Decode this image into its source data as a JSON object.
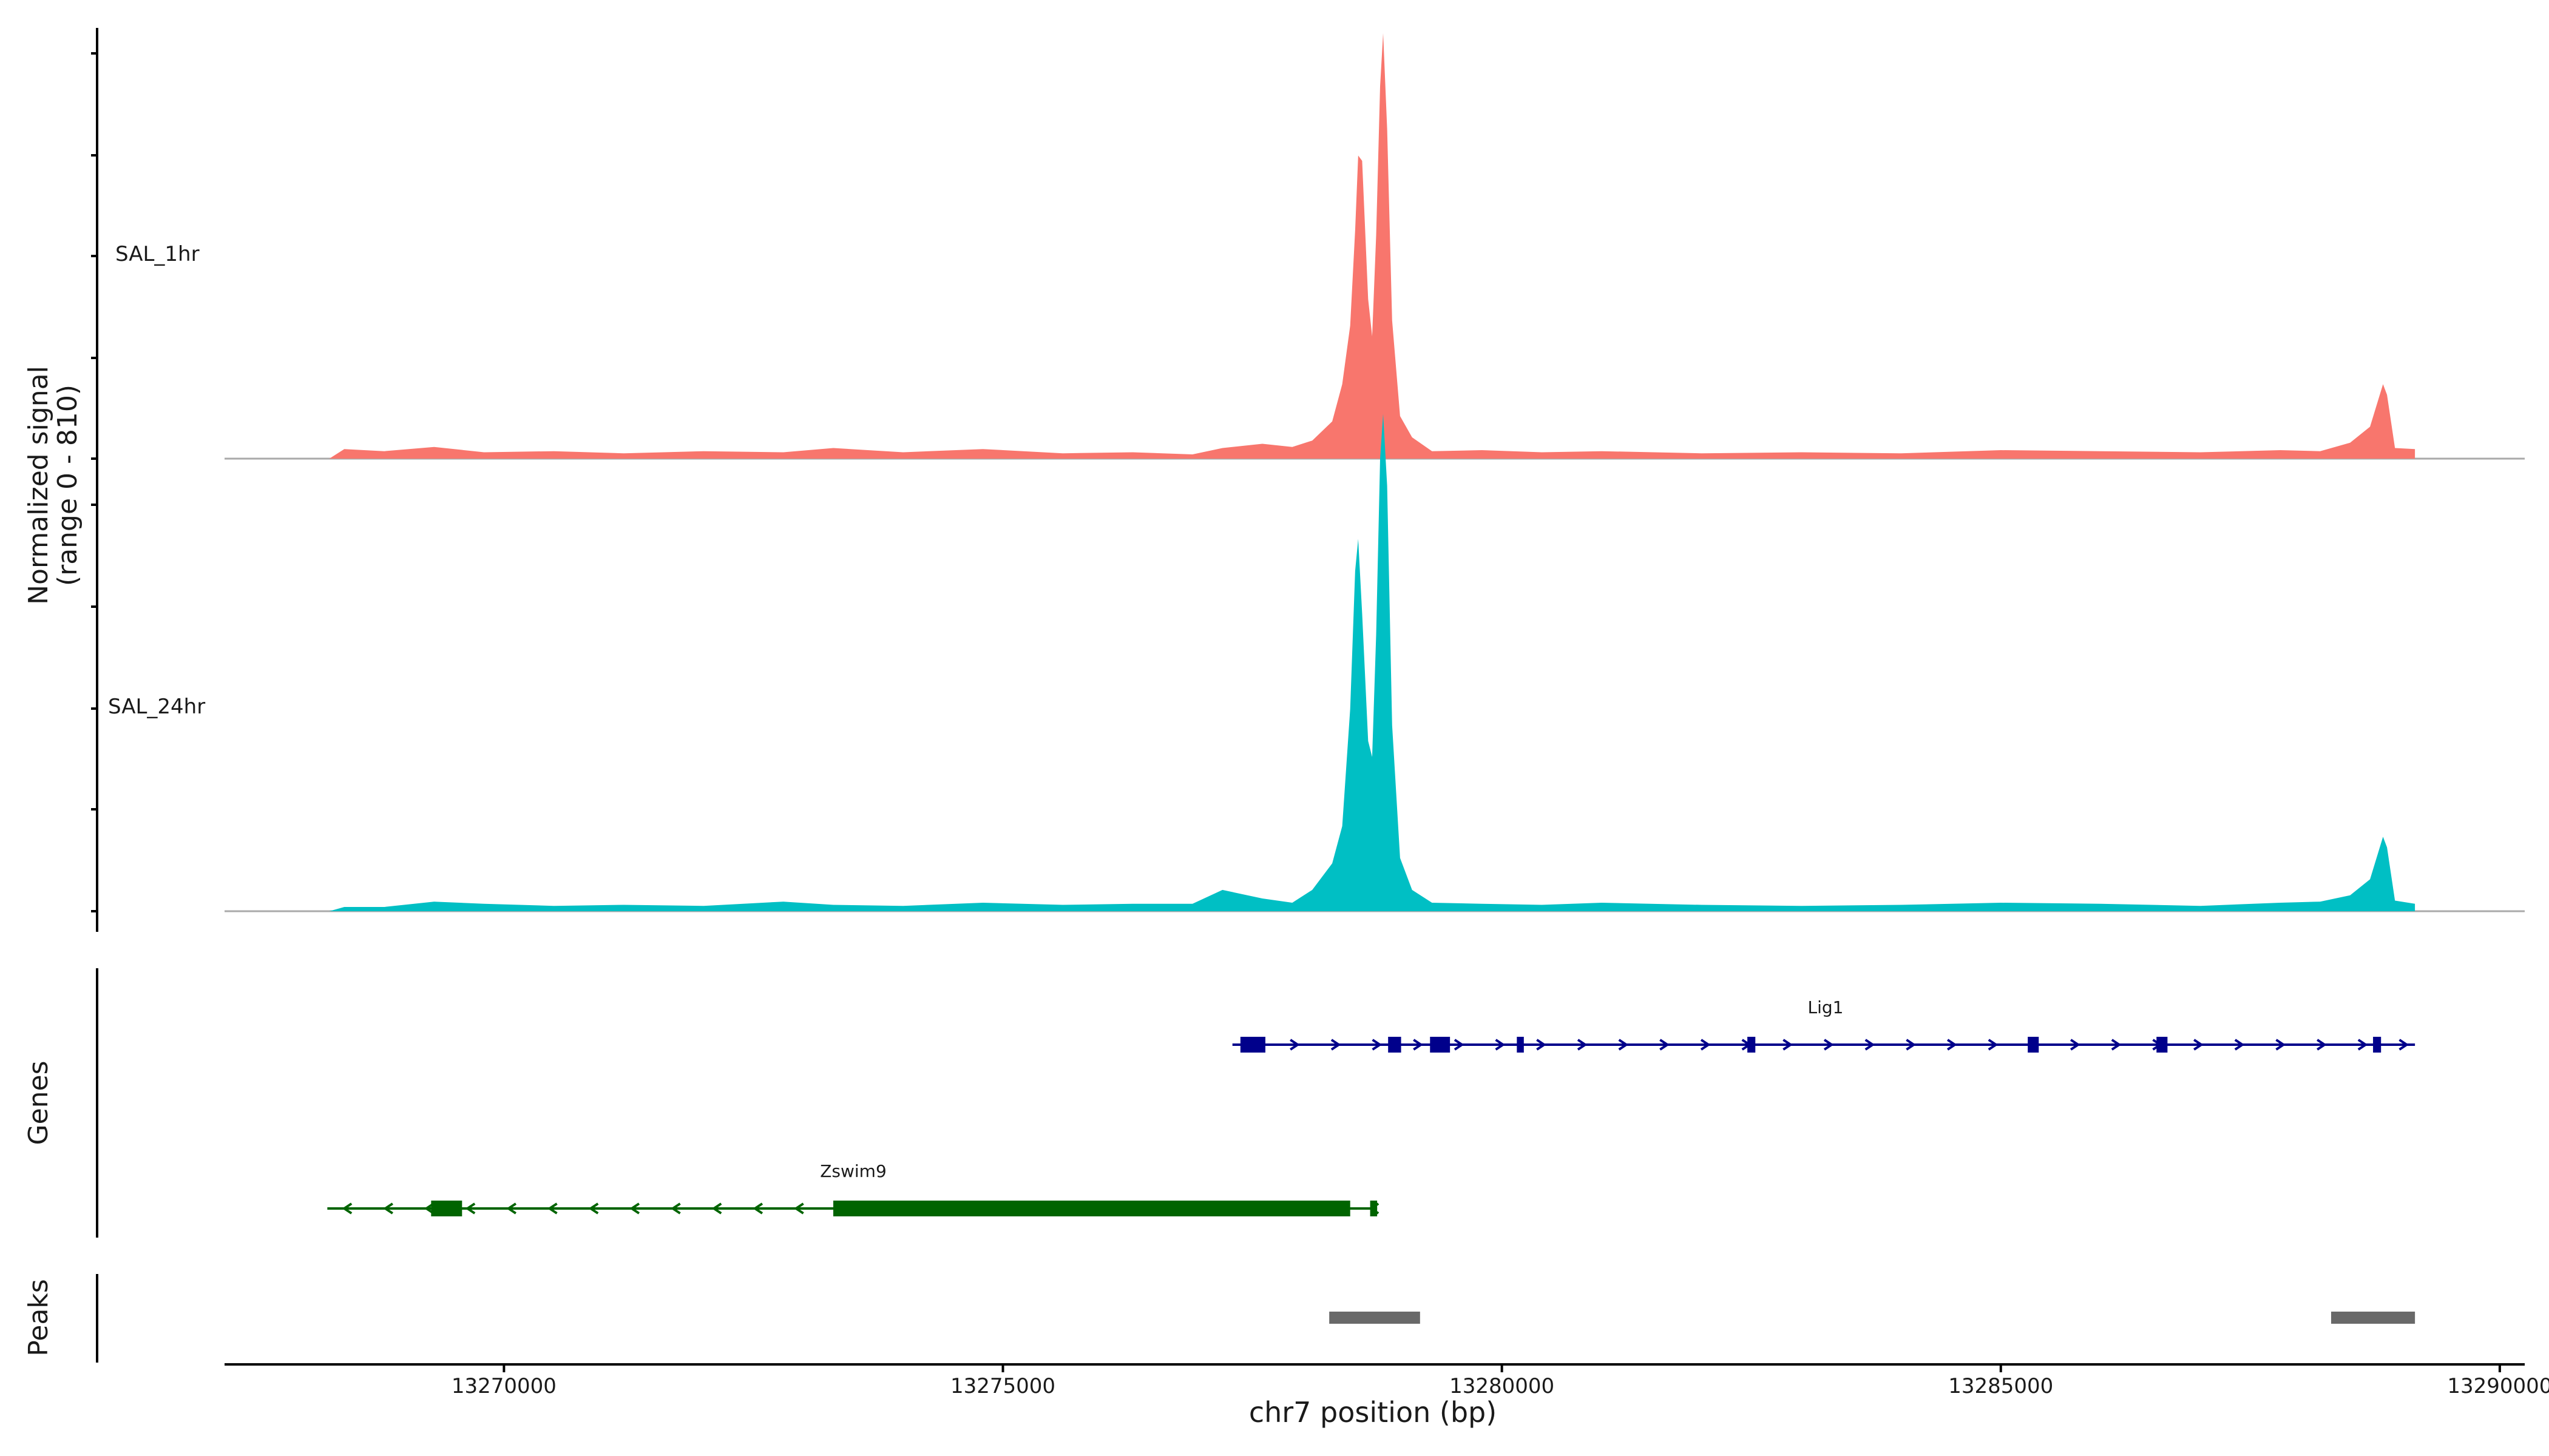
{
  "chart_data": {
    "type": "area",
    "region": "chr7",
    "xlabel": "chr7 position (bp)",
    "ylabel_line1": "Normalized signal",
    "ylabel_line2": "(range 0 - 810)",
    "xlim": [
      13267200,
      13290250
    ],
    "x_ticks": [
      {
        "value": 13270000,
        "label": "13270000"
      },
      {
        "value": 13275000,
        "label": "13275000"
      },
      {
        "value": 13280000,
        "label": "13280000"
      },
      {
        "value": 13285000,
        "label": "13285000"
      },
      {
        "value": 13290000,
        "label": "13290000"
      }
    ],
    "ylim": [
      0,
      810
    ],
    "series": [
      {
        "name": "SAL_1hr",
        "color": "#f8766d",
        "points": [
          [
            13268250,
            0
          ],
          [
            13268400,
            18
          ],
          [
            13268800,
            14
          ],
          [
            13269300,
            22
          ],
          [
            13269800,
            12
          ],
          [
            13270500,
            14
          ],
          [
            13271200,
            10
          ],
          [
            13272000,
            14
          ],
          [
            13272800,
            12
          ],
          [
            13273300,
            20
          ],
          [
            13274000,
            12
          ],
          [
            13274800,
            18
          ],
          [
            13275600,
            10
          ],
          [
            13276300,
            12
          ],
          [
            13276900,
            8
          ],
          [
            13277200,
            20
          ],
          [
            13277600,
            28
          ],
          [
            13277900,
            22
          ],
          [
            13278100,
            34
          ],
          [
            13278300,
            70
          ],
          [
            13278400,
            140
          ],
          [
            13278480,
            250
          ],
          [
            13278530,
            430
          ],
          [
            13278560,
            570
          ],
          [
            13278600,
            560
          ],
          [
            13278660,
            300
          ],
          [
            13278700,
            230
          ],
          [
            13278740,
            420
          ],
          [
            13278780,
            700
          ],
          [
            13278810,
            800
          ],
          [
            13278850,
            620
          ],
          [
            13278900,
            260
          ],
          [
            13278980,
            80
          ],
          [
            13279100,
            40
          ],
          [
            13279300,
            14
          ],
          [
            13279800,
            16
          ],
          [
            13280400,
            12
          ],
          [
            13281000,
            14
          ],
          [
            13282000,
            10
          ],
          [
            13283000,
            12
          ],
          [
            13284000,
            10
          ],
          [
            13285000,
            16
          ],
          [
            13286000,
            14
          ],
          [
            13287000,
            12
          ],
          [
            13287800,
            16
          ],
          [
            13288200,
            14
          ],
          [
            13288500,
            30
          ],
          [
            13288700,
            60
          ],
          [
            13288830,
            140
          ],
          [
            13288870,
            120
          ],
          [
            13288950,
            20
          ],
          [
            13289150,
            18
          ],
          [
            13289150,
            0
          ]
        ]
      },
      {
        "name": "SAL_24hr",
        "color": "#00bfc4",
        "points": [
          [
            13268250,
            0
          ],
          [
            13268400,
            8
          ],
          [
            13268800,
            8
          ],
          [
            13269300,
            18
          ],
          [
            13269800,
            14
          ],
          [
            13270500,
            10
          ],
          [
            13271200,
            12
          ],
          [
            13272000,
            10
          ],
          [
            13272800,
            18
          ],
          [
            13273300,
            12
          ],
          [
            13274000,
            10
          ],
          [
            13274800,
            16
          ],
          [
            13275600,
            12
          ],
          [
            13276300,
            14
          ],
          [
            13276900,
            14
          ],
          [
            13277200,
            40
          ],
          [
            13277600,
            24
          ],
          [
            13277900,
            16
          ],
          [
            13278100,
            40
          ],
          [
            13278300,
            90
          ],
          [
            13278400,
            160
          ],
          [
            13278480,
            380
          ],
          [
            13278530,
            640
          ],
          [
            13278560,
            700
          ],
          [
            13278600,
            560
          ],
          [
            13278660,
            320
          ],
          [
            13278700,
            290
          ],
          [
            13278740,
            520
          ],
          [
            13278780,
            850
          ],
          [
            13278810,
            935
          ],
          [
            13278850,
            800
          ],
          [
            13278900,
            350
          ],
          [
            13278980,
            100
          ],
          [
            13279100,
            40
          ],
          [
            13279300,
            16
          ],
          [
            13279800,
            14
          ],
          [
            13280400,
            12
          ],
          [
            13281000,
            16
          ],
          [
            13282000,
            12
          ],
          [
            13283000,
            10
          ],
          [
            13284000,
            12
          ],
          [
            13285000,
            16
          ],
          [
            13286000,
            14
          ],
          [
            13287000,
            10
          ],
          [
            13287800,
            16
          ],
          [
            13288200,
            18
          ],
          [
            13288500,
            30
          ],
          [
            13288700,
            60
          ],
          [
            13288830,
            140
          ],
          [
            13288870,
            120
          ],
          [
            13288950,
            20
          ],
          [
            13289150,
            14
          ],
          [
            13289150,
            0
          ]
        ]
      }
    ],
    "genes_panel_label": "Genes",
    "genes": [
      {
        "name": "Lig1",
        "color": "#00008b",
        "strand": "+",
        "start": 13277300,
        "end": 13289150,
        "exons": [
          [
            13277380,
            13277630
          ],
          [
            13278860,
            13278990
          ],
          [
            13279280,
            13279480
          ],
          [
            13280150,
            13280220
          ],
          [
            13282460,
            13282540
          ],
          [
            13285270,
            13285380
          ],
          [
            13286560,
            13286670
          ],
          [
            13288730,
            13288810
          ]
        ]
      },
      {
        "name": "Zswim9",
        "color": "#006400",
        "strand": "-",
        "start": 13268230,
        "end": 13278750,
        "exons": [
          [
            13269270,
            13269580
          ],
          [
            13273300,
            13278480
          ],
          [
            13278680,
            13278750
          ]
        ]
      }
    ],
    "peaks_panel_label": "Peaks",
    "peaks": [
      {
        "start": 13278270,
        "end": 13279180
      },
      {
        "start": 13288310,
        "end": 13289150
      }
    ],
    "peak_color": "#696969"
  }
}
